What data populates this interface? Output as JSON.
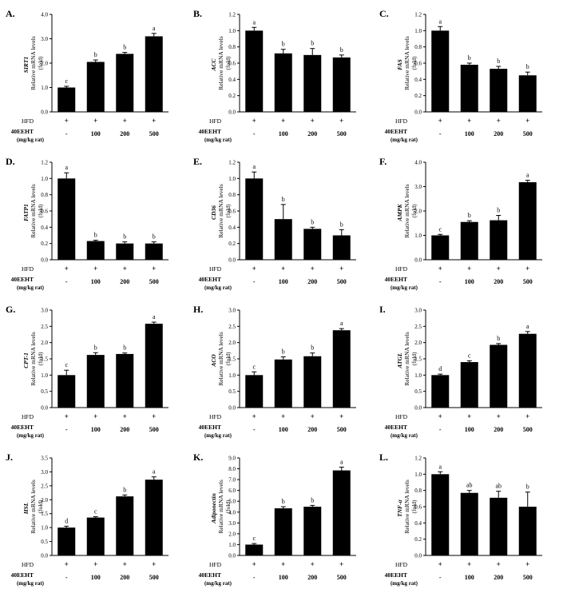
{
  "figure": {
    "row_labels": {
      "hfd": "HFD",
      "dose": "40EEHT",
      "unit": "(mg/kg rat)"
    },
    "group_treatments": {
      "hfd": [
        "+",
        "+",
        "+",
        "+"
      ],
      "dose": [
        "-",
        "100",
        "200",
        "500"
      ]
    },
    "y_label_common": [
      "Relative mRNA levels",
      "(fold)"
    ],
    "bar_color": "#000000"
  },
  "chart_data": [
    {
      "type": "bar",
      "panel": "A.",
      "gene": "SIRT1",
      "categories": [
        "-",
        "100",
        "200",
        "500"
      ],
      "values": [
        1.0,
        2.05,
        2.38,
        3.1
      ],
      "errors": [
        0.05,
        0.08,
        0.06,
        0.12
      ],
      "letters": [
        "c",
        "b",
        "b",
        "a"
      ],
      "ylim": [
        0,
        4
      ],
      "ticks": [
        "0.0",
        "1.0",
        "2.0",
        "3.0",
        "4.0"
      ]
    },
    {
      "type": "bar",
      "panel": "B.",
      "gene": "ACC",
      "categories": [
        "-",
        "100",
        "200",
        "500"
      ],
      "values": [
        1.0,
        0.72,
        0.7,
        0.67
      ],
      "errors": [
        0.04,
        0.05,
        0.08,
        0.03
      ],
      "letters": [
        "a",
        "b",
        "b",
        "b"
      ],
      "ylim": [
        0,
        1.2
      ],
      "ticks": [
        "0.0",
        "0.2",
        "0.4",
        "0.6",
        "0.8",
        "1.0",
        "1.2"
      ]
    },
    {
      "type": "bar",
      "panel": "C.",
      "gene": "FAS",
      "categories": [
        "-",
        "100",
        "200",
        "500"
      ],
      "values": [
        1.0,
        0.58,
        0.53,
        0.45
      ],
      "errors": [
        0.05,
        0.02,
        0.03,
        0.04
      ],
      "letters": [
        "a",
        "b",
        "b",
        "b"
      ],
      "ylim": [
        0,
        1.2
      ],
      "ticks": [
        "0.0",
        "0.2",
        "0.4",
        "0.6",
        "0.8",
        "1.0",
        "1.2"
      ]
    },
    {
      "type": "bar",
      "panel": "D.",
      "gene": "FATP1",
      "categories": [
        "-",
        "100",
        "200",
        "500"
      ],
      "values": [
        1.0,
        0.23,
        0.2,
        0.2
      ],
      "errors": [
        0.07,
        0.01,
        0.02,
        0.02
      ],
      "letters": [
        "a",
        "b",
        "b",
        "b"
      ],
      "ylim": [
        0,
        1.2
      ],
      "ticks": [
        "0.0",
        "0.2",
        "0.4",
        "0.6",
        "0.8",
        "1.0",
        "1.2"
      ]
    },
    {
      "type": "bar",
      "panel": "E.",
      "gene": "CD36",
      "categories": [
        "-",
        "100",
        "200",
        "500"
      ],
      "values": [
        1.0,
        0.5,
        0.38,
        0.3
      ],
      "errors": [
        0.08,
        0.18,
        0.02,
        0.07
      ],
      "letters": [
        "a",
        "b",
        "b",
        "b"
      ],
      "ylim": [
        0,
        1.2
      ],
      "ticks": [
        "0.0",
        "0.2",
        "0.4",
        "0.6",
        "0.8",
        "1.0",
        "1.2"
      ]
    },
    {
      "type": "bar",
      "panel": "F.",
      "gene": "AMPK",
      "categories": [
        "-",
        "100",
        "200",
        "500"
      ],
      "values": [
        1.0,
        1.55,
        1.62,
        3.18
      ],
      "errors": [
        0.04,
        0.05,
        0.2,
        0.08
      ],
      "letters": [
        "c",
        "b",
        "b",
        "a"
      ],
      "ylim": [
        0,
        4
      ],
      "ticks": [
        "0.0",
        "1.0",
        "2.0",
        "3.0",
        "4.0"
      ]
    },
    {
      "type": "bar",
      "panel": "G.",
      "gene": "CPT-1",
      "categories": [
        "-",
        "100",
        "200",
        "500"
      ],
      "values": [
        1.0,
        1.62,
        1.65,
        2.58
      ],
      "errors": [
        0.15,
        0.07,
        0.03,
        0.05
      ],
      "letters": [
        "c",
        "b",
        "b",
        "a"
      ],
      "ylim": [
        0,
        3
      ],
      "ticks": [
        "0.0",
        "0.5",
        "1.0",
        "1.5",
        "2.0",
        "2.5",
        "3.0"
      ]
    },
    {
      "type": "bar",
      "panel": "H.",
      "gene": "ACO",
      "categories": [
        "-",
        "100",
        "200",
        "500"
      ],
      "values": [
        1.0,
        1.48,
        1.58,
        2.38
      ],
      "errors": [
        0.1,
        0.08,
        0.1,
        0.05
      ],
      "letters": [
        "c",
        "b",
        "b",
        "a"
      ],
      "ylim": [
        0,
        3
      ],
      "ticks": [
        "0.0",
        "0.5",
        "1.0",
        "1.5",
        "2.0",
        "2.5",
        "3.0"
      ]
    },
    {
      "type": "bar",
      "panel": "I.",
      "gene": "ATGL",
      "categories": [
        "-",
        "100",
        "200",
        "500"
      ],
      "values": [
        1.0,
        1.4,
        1.93,
        2.27
      ],
      "errors": [
        0.03,
        0.04,
        0.04,
        0.07
      ],
      "letters": [
        "d",
        "c",
        "b",
        "a"
      ],
      "ylim": [
        0,
        3
      ],
      "ticks": [
        "0.0",
        "0.5",
        "1.0",
        "1.5",
        "2.0",
        "2.5",
        "3.0"
      ]
    },
    {
      "type": "bar",
      "panel": "J.",
      "gene": "HSL",
      "categories": [
        "-",
        "100",
        "200",
        "500"
      ],
      "values": [
        1.0,
        1.36,
        2.12,
        2.72
      ],
      "errors": [
        0.05,
        0.03,
        0.05,
        0.1
      ],
      "letters": [
        "d",
        "c",
        "b",
        "a"
      ],
      "ylim": [
        0,
        3.5
      ],
      "ticks": [
        "0.0",
        "0.5",
        "1.0",
        "1.5",
        "2.0",
        "2.5",
        "3.0",
        "3.5"
      ]
    },
    {
      "type": "bar",
      "panel": "K.",
      "gene": "Adiponectin",
      "categories": [
        "-",
        "100",
        "200",
        "500"
      ],
      "values": [
        1.0,
        4.35,
        4.5,
        7.85
      ],
      "errors": [
        0.1,
        0.15,
        0.12,
        0.3
      ],
      "letters": [
        "c",
        "b",
        "b",
        "a"
      ],
      "ylim": [
        0,
        9
      ],
      "ticks": [
        "0.0",
        "1.0",
        "2.0",
        "3.0",
        "4.0",
        "5.0",
        "6.0",
        "7.0",
        "8.0",
        "9.0"
      ]
    },
    {
      "type": "bar",
      "panel": "L.",
      "gene": "TNF-α",
      "categories": [
        "-",
        "100",
        "200",
        "500"
      ],
      "values": [
        1.0,
        0.77,
        0.71,
        0.6
      ],
      "errors": [
        0.03,
        0.03,
        0.08,
        0.18
      ],
      "letters": [
        "a",
        "ab",
        "ab",
        "b"
      ],
      "ylim": [
        0,
        1.2
      ],
      "ticks": [
        "0.0",
        "0.2",
        "0.4",
        "0.6",
        "0.8",
        "1.0",
        "1.2"
      ]
    }
  ]
}
